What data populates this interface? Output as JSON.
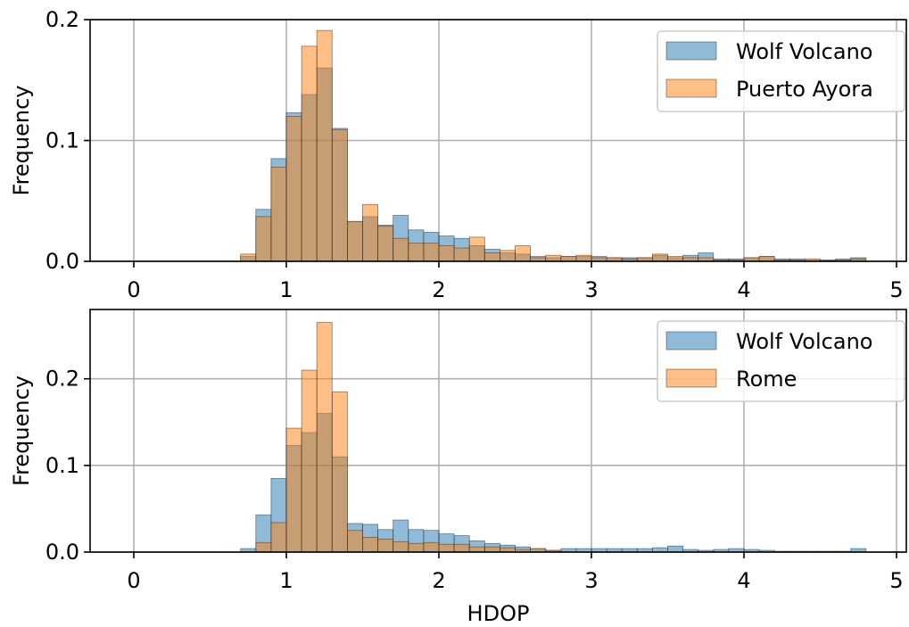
{
  "chart_data": [
    {
      "type": "bar",
      "title": "",
      "xlabel": "",
      "ylabel": "Frequency",
      "xlim": [
        -0.28,
        5.05
      ],
      "ylim": [
        0,
        0.2
      ],
      "xticks": [
        "0",
        "1",
        "2",
        "3",
        "4",
        "5"
      ],
      "yticks": [
        "0.0",
        "0.1",
        "0.2"
      ],
      "grid": true,
      "legend_position": "top-right",
      "bin_start": 0.7,
      "bin_width": 0.1,
      "series": [
        {
          "name": "Wolf Volcano",
          "color": "#1f77b4",
          "values": [
            0.004,
            0.043,
            0.085,
            0.123,
            0.138,
            0.16,
            0.11,
            0.033,
            0.037,
            0.03,
            0.038,
            0.026,
            0.024,
            0.021,
            0.019,
            0.013,
            0.01,
            0.007,
            0.006,
            0.004,
            0.003,
            0.004,
            0.004,
            0.004,
            0.003,
            0.003,
            0.003,
            0.005,
            0.003,
            0.005,
            0.007,
            0.002,
            0.002,
            0.003,
            0.004,
            0.002,
            0.002,
            0.001,
            0.001,
            0.002,
            0.003
          ]
        },
        {
          "name": "Puerto Ayora",
          "color": "#ff7f0e",
          "values": [
            0.006,
            0.037,
            0.078,
            0.12,
            0.178,
            0.191,
            0.109,
            0.033,
            0.047,
            0.029,
            0.019,
            0.015,
            0.015,
            0.013,
            0.011,
            0.02,
            0.007,
            0.009,
            0.013,
            0.003,
            0.005,
            0.004,
            0.005,
            0.003,
            0.003,
            0.002,
            0.003,
            0.006,
            0.004,
            0.003,
            0.003,
            0.001,
            0.001,
            0.003,
            0.004,
            0.001,
            0.001,
            0.002,
            0.001,
            0.001,
            0.002
          ]
        }
      ]
    },
    {
      "type": "bar",
      "title": "",
      "xlabel": "HDOP",
      "ylabel": "Frequency",
      "xlim": [
        -0.28,
        5.05
      ],
      "ylim": [
        0,
        0.28
      ],
      "xticks": [
        "0",
        "1",
        "2",
        "3",
        "4",
        "5"
      ],
      "yticks": [
        "0.0",
        "0.1",
        "0.2"
      ],
      "grid": true,
      "legend_position": "top-right",
      "bin_start": 0.7,
      "bin_width": 0.1,
      "series": [
        {
          "name": "Wolf Volcano",
          "color": "#1f77b4",
          "values": [
            0.004,
            0.043,
            0.085,
            0.123,
            0.138,
            0.16,
            0.11,
            0.033,
            0.032,
            0.026,
            0.037,
            0.026,
            0.025,
            0.021,
            0.019,
            0.013,
            0.01,
            0.008,
            0.006,
            0.004,
            0.002,
            0.004,
            0.004,
            0.004,
            0.004,
            0.004,
            0.004,
            0.005,
            0.007,
            0.003,
            0.002,
            0.003,
            0.004,
            0.003,
            0.002,
            0.001,
            0.001,
            0.001,
            0.001,
            0.001,
            0.004
          ]
        },
        {
          "name": "Rome",
          "color": "#ff7f0e",
          "values": [
            0.0,
            0.011,
            0.034,
            0.143,
            0.21,
            0.265,
            0.185,
            0.025,
            0.017,
            0.015,
            0.012,
            0.01,
            0.011,
            0.009,
            0.009,
            0.006,
            0.006,
            0.005,
            0.003,
            0.004,
            0.002,
            0.0,
            0.0,
            0.0,
            0.0,
            0.0,
            0.0,
            0.0,
            0.0,
            0.0,
            0.0,
            0.0,
            0.0,
            0.0,
            0.0,
            0.0,
            0.0,
            0.0,
            0.0,
            0.0,
            0.0
          ]
        }
      ]
    }
  ]
}
